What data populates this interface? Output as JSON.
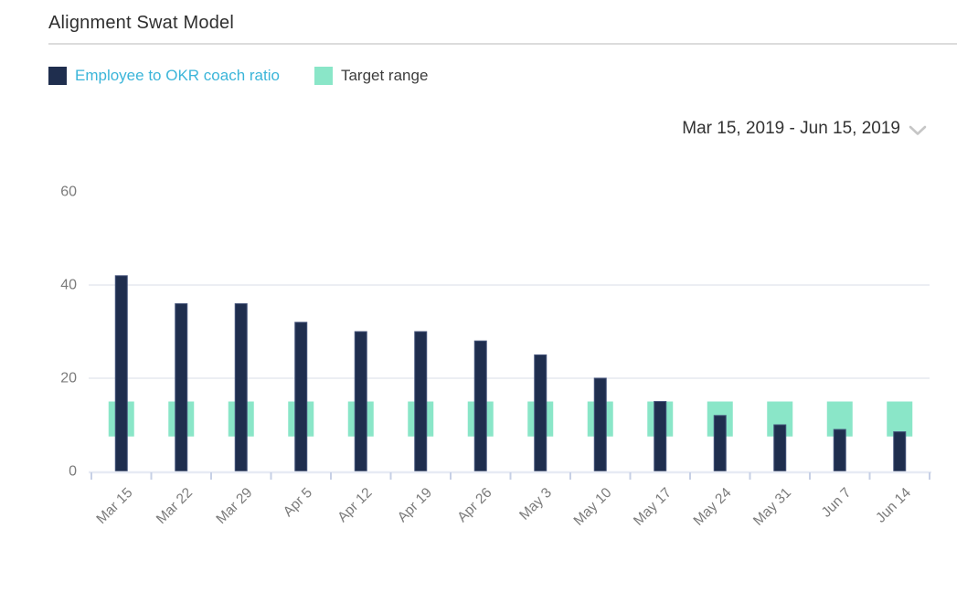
{
  "header": {
    "title": "Alignment Swat Model"
  },
  "legend": {
    "items": [
      {
        "label": "Employee to OKR coach ratio",
        "swatch_color": "#1F2E4E",
        "label_color": "#3BB5D9"
      },
      {
        "label": "Target range",
        "swatch_color": "#8AE6C8",
        "label_color": "#3d3d3d"
      }
    ]
  },
  "date_range": {
    "value": "Mar 15, 2019 - Jun 15, 2019",
    "chevron_icon": "chevron-down",
    "chevron_color": "#c6c6c6"
  },
  "chart_data": {
    "type": "bar",
    "title": "Alignment Swat Model",
    "categories": [
      "Mar 15",
      "Mar 22",
      "Mar 29",
      "Apr 5",
      "Apr 12",
      "Apr 19",
      "Apr 26",
      "May 3",
      "May 10",
      "May 17",
      "May 24",
      "May 31",
      "Jun 7",
      "Jun 14"
    ],
    "series": [
      {
        "name": "Employee to OKR coach ratio",
        "render": "bar",
        "color": "#1F2E4E",
        "edge_color": "#44537A",
        "values": [
          42,
          36,
          36,
          32,
          30,
          30,
          28,
          25,
          20,
          15,
          12,
          10,
          9,
          8.5
        ]
      },
      {
        "name": "Target range",
        "render": "band",
        "color": "#8AE6C8",
        "low": 7.5,
        "high": 15
      }
    ],
    "xlabel": "",
    "ylabel": "",
    "ylim": [
      0,
      65
    ],
    "yticks": [
      0,
      20,
      40,
      60
    ],
    "gridlines": [
      20,
      40
    ],
    "grid_on": true,
    "legend_position": "top-left",
    "colors": {
      "grid_line": "#eceef3",
      "axis_line": "#e7ebf4",
      "tick_mark": "#c7d0e6",
      "axis_label": "#7b7b7b"
    }
  }
}
